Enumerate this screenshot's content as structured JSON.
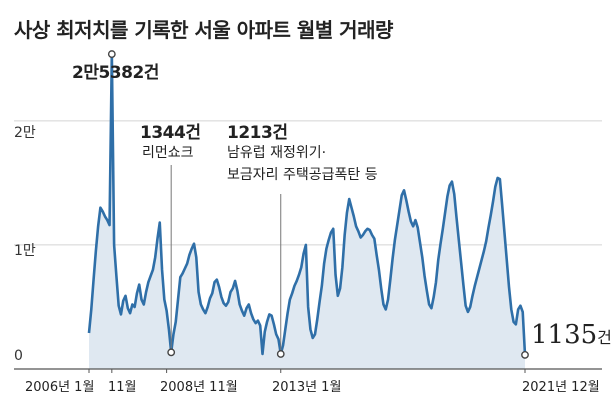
{
  "chart_data": {
    "type": "area",
    "title": "사상 최저치를 기록한 서울 아파트 월별 거래량",
    "ylim": [
      0,
      27000
    ],
    "yticks": [
      {
        "value": 0,
        "label": "0"
      },
      {
        "value": 10000,
        "label": "1만"
      },
      {
        "value": 20000,
        "label": "2만"
      }
    ],
    "xticks": [
      {
        "index": 0,
        "label": "2006년 1월"
      },
      {
        "index": 10,
        "label": "11월"
      },
      {
        "index": 34,
        "label": "2008년 11월"
      },
      {
        "index": 84,
        "label": "2013년 1월"
      },
      {
        "index": 191,
        "label": "2021년 12월"
      }
    ],
    "grid": true,
    "colors": {
      "line": "#2f6fa8",
      "fill": "#dfe8f1",
      "grid": "#d4d4d4"
    },
    "x": {
      "start": "2006-01",
      "end": "2021-12",
      "frequency": "monthly"
    },
    "values": [
      2900,
      4800,
      7200,
      9500,
      11500,
      13000,
      12700,
      12300,
      12000,
      11600,
      25382,
      10000,
      7500,
      5100,
      4400,
      5500,
      5900,
      4900,
      4500,
      5200,
      5000,
      6100,
      6800,
      5600,
      5200,
      6200,
      7000,
      7500,
      8000,
      9000,
      10500,
      11800,
      8000,
      5600,
      4700,
      3200,
      1344,
      2800,
      3800,
      5600,
      7400,
      7700,
      8100,
      8500,
      9200,
      9700,
      10100,
      9000,
      6200,
      5200,
      4800,
      4500,
      5000,
      5700,
      6100,
      7000,
      7200,
      6600,
      5800,
      5300,
      5100,
      5400,
      6200,
      6500,
      7100,
      6300,
      5200,
      4700,
      4300,
      4900,
      5200,
      4500,
      4000,
      3700,
      3900,
      3500,
      1213,
      3000,
      3800,
      4400,
      4300,
      3600,
      2800,
      2400,
      1213,
      1900,
      3200,
      4500,
      5600,
      6100,
      6700,
      7100,
      7600,
      8200,
      9300,
      10000,
      5000,
      3200,
      2500,
      2800,
      4000,
      5400,
      6700,
      8500,
      9700,
      10400,
      11000,
      11300,
      7600,
      5900,
      6500,
      8200,
      10800,
      12600,
      13700,
      13000,
      12300,
      11500,
      11100,
      10600,
      10800,
      11100,
      11300,
      11200,
      10800,
      10500,
      9200,
      8000,
      6500,
      5200,
      4800,
      5600,
      7200,
      8900,
      10400,
      11600,
      12800,
      14000,
      14400,
      13600,
      12700,
      11900,
      11500,
      12000,
      11400,
      10200,
      9000,
      7500,
      6300,
      5200,
      4900,
      5800,
      7000,
      8800,
      10100,
      11300,
      12600,
      13900,
      14800,
      15100,
      14100,
      12200,
      10400,
      8600,
      6800,
      5100,
      4600,
      5000,
      5900,
      6700,
      7400,
      8100,
      8800,
      9500,
      10300,
      11400,
      12400,
      13500,
      14700,
      15400,
      15300,
      13200,
      11000,
      8800,
      6600,
      4800,
      3800,
      3600,
      4800,
      5100,
      4600,
      1135
    ],
    "annotations": [
      {
        "index": 10,
        "value": 25382,
        "value_label": "2만5382건",
        "text": ""
      },
      {
        "index": 36,
        "value": 1344,
        "value_label": "1344건",
        "text": "리먼쇼크"
      },
      {
        "index": 84,
        "value": 1213,
        "value_label": "1213건",
        "text": "남유럽 재정위기·\n보금자리 주택공급폭탄 등"
      },
      {
        "index": 191,
        "value": 1135,
        "value_label": "1135",
        "value_unit": "건",
        "text": ""
      }
    ]
  }
}
